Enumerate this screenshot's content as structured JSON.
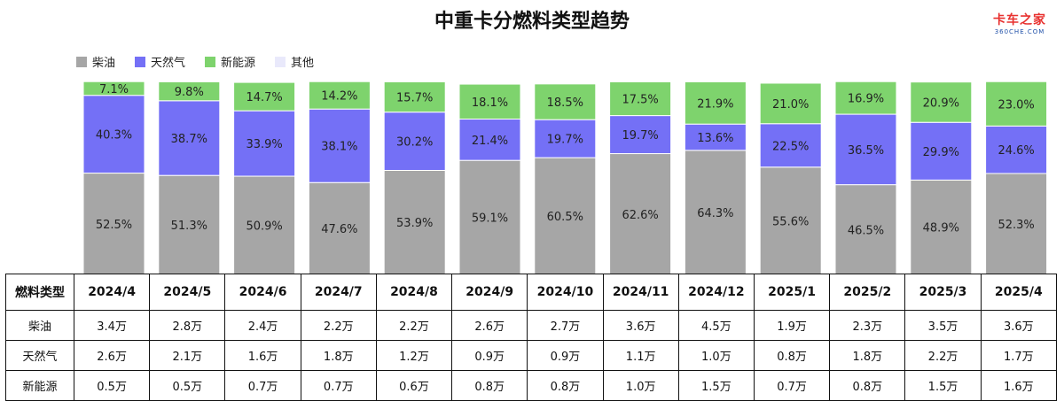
{
  "title": "中重卡分燃料类型趋势",
  "logo": {
    "main": "卡车之家",
    "sub": "360CHE.COM"
  },
  "chart_data": {
    "type": "bar",
    "stacked": true,
    "percent_stacked": true,
    "categories": [
      "2024/4",
      "2024/5",
      "2024/6",
      "2024/7",
      "2024/8",
      "2024/9",
      "2024/10",
      "2024/11",
      "2024/12",
      "2025/1",
      "2025/2",
      "2025/3",
      "2025/4"
    ],
    "series": [
      {
        "name": "柴油",
        "color": "#a6a6a6",
        "values": [
          52.5,
          51.3,
          50.9,
          47.6,
          53.9,
          59.1,
          60.5,
          62.6,
          64.3,
          55.6,
          46.5,
          48.9,
          52.3
        ],
        "labels": [
          "52.5%",
          "51.3%",
          "50.9%",
          "47.6%",
          "53.9%",
          "59.1%",
          "60.5%",
          "62.6%",
          "64.3%",
          "55.6%",
          "46.5%",
          "48.9%",
          "52.3%"
        ]
      },
      {
        "name": "天然气",
        "color": "#7470f6",
        "values": [
          40.3,
          38.7,
          33.9,
          38.1,
          30.2,
          21.4,
          19.7,
          19.7,
          13.6,
          22.5,
          36.5,
          29.9,
          24.6
        ],
        "labels": [
          "40.3%",
          "38.7%",
          "33.9%",
          "38.1%",
          "30.2%",
          "21.4%",
          "19.7%",
          "19.7%",
          "13.6%",
          "22.5%",
          "36.5%",
          "29.9%",
          "24.6%"
        ]
      },
      {
        "name": "新能源",
        "color": "#7ed36d",
        "values": [
          7.1,
          9.8,
          14.7,
          14.2,
          15.7,
          18.1,
          18.5,
          17.5,
          21.9,
          21.0,
          16.9,
          20.9,
          23.0
        ],
        "labels": [
          "7.1%",
          "9.8%",
          "14.7%",
          "14.2%",
          "15.7%",
          "18.1%",
          "18.5%",
          "17.5%",
          "21.9%",
          "21.0%",
          "16.9%",
          "20.9%",
          "23.0%"
        ]
      },
      {
        "name": "其他",
        "color": "#e9e9fb",
        "values": [
          0,
          0,
          0,
          0,
          0,
          0,
          0,
          0,
          0,
          0,
          0,
          0,
          0
        ]
      }
    ],
    "legend_position": "top-left"
  },
  "table": {
    "header": "燃料类型",
    "rows": [
      {
        "label": "柴油",
        "values": [
          "3.4万",
          "2.8万",
          "2.4万",
          "2.2万",
          "2.2万",
          "2.6万",
          "2.7万",
          "3.6万",
          "4.5万",
          "1.9万",
          "2.3万",
          "3.5万",
          "3.6万"
        ]
      },
      {
        "label": "天然气",
        "values": [
          "2.6万",
          "2.1万",
          "1.6万",
          "1.8万",
          "1.2万",
          "0.9万",
          "0.9万",
          "1.1万",
          "1.0万",
          "0.8万",
          "1.8万",
          "2.2万",
          "1.7万"
        ]
      },
      {
        "label": "新能源",
        "values": [
          "0.5万",
          "0.5万",
          "0.7万",
          "0.7万",
          "0.6万",
          "0.8万",
          "0.8万",
          "1.0万",
          "1.5万",
          "0.7万",
          "0.8万",
          "1.5万",
          "1.6万"
        ]
      }
    ]
  }
}
